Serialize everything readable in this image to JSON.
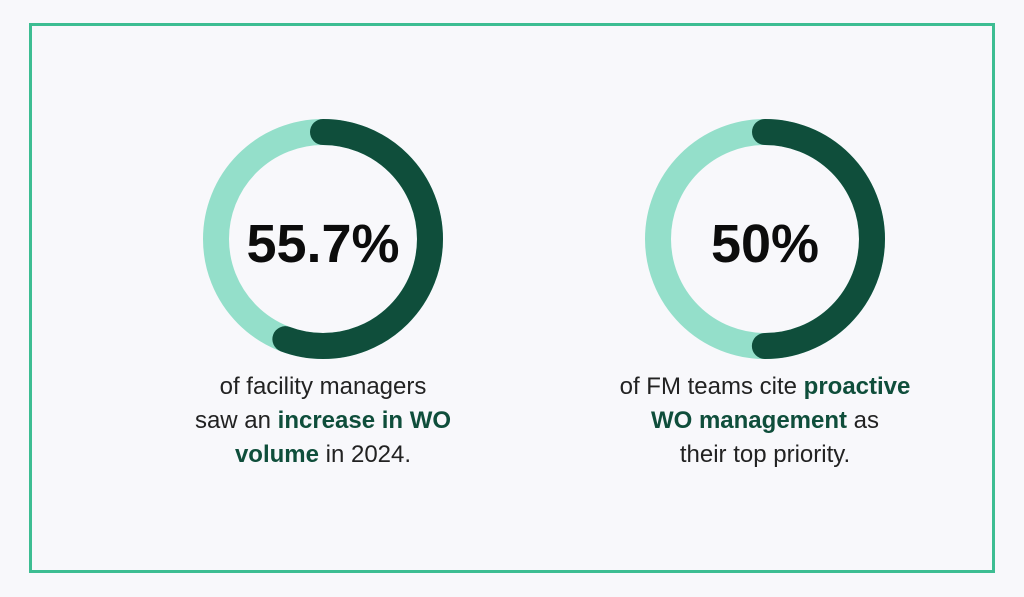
{
  "colors": {
    "border": "#3dbd92",
    "ring_track": "#94dfca",
    "ring_fill": "#0f4e3b",
    "highlight_text": "#0f4e3b",
    "background": "#f8f8fb"
  },
  "stats": [
    {
      "value_label": "55.7%",
      "caption": {
        "line1": "of facility managers",
        "line2_pre": "saw an ",
        "line2_hl": "increase in WO",
        "line3_hl": "volume",
        "line3_post": " in 2024."
      }
    },
    {
      "value_label": "50%",
      "caption": {
        "line1_pre": "of FM teams cite ",
        "line1_hl": "proactive",
        "line2_hl": "WO management",
        "line2_post": " as",
        "line3": "their top priority."
      }
    }
  ],
  "chart_data": [
    {
      "type": "pie",
      "values": [
        55.7,
        44.3
      ]
    },
    {
      "type": "pie",
      "values": [
        50,
        50
      ]
    }
  ]
}
